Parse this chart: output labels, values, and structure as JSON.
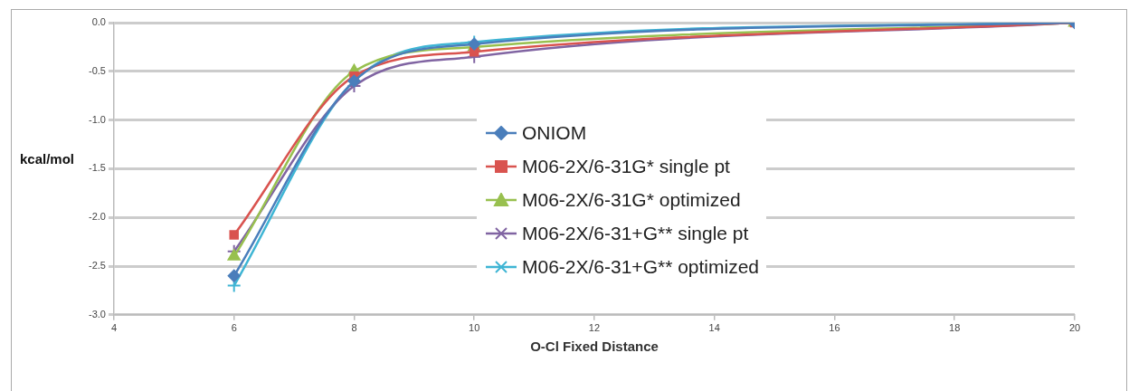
{
  "chart_data": {
    "type": "line",
    "xlabel": "O-Cl Fixed Distance",
    "ylabel": "kcal/mol",
    "x": [
      6,
      8,
      10,
      20
    ],
    "xlim": [
      4,
      20
    ],
    "xticks": [
      4,
      6,
      8,
      10,
      12,
      14,
      16,
      18,
      20
    ],
    "ylim": [
      -3,
      0
    ],
    "yticks": [
      {
        "value": -3,
        "label": "-3.0"
      },
      {
        "value": -2.5,
        "label": "-2.5"
      },
      {
        "value": -2,
        "label": "-2.0"
      },
      {
        "value": -1.5,
        "label": "-1.5"
      },
      {
        "value": -1,
        "label": "-1.0"
      },
      {
        "value": -0.5,
        "label": "-0.5"
      },
      {
        "value": 0,
        "label": "0.0"
      }
    ],
    "grid": "y",
    "legend": "center",
    "series": [
      {
        "name": "ONIOM",
        "color": "#4a7ebb",
        "marker": "diamond",
        "values": [
          -2.6,
          -0.6,
          -0.22,
          0
        ]
      },
      {
        "name": "M06-2X/6-31G* single pt",
        "color": "#d9534f",
        "marker": "square",
        "values": [
          -2.18,
          -0.55,
          -0.3,
          0
        ]
      },
      {
        "name": "M06-2X/6-31G* optimized",
        "color": "#98c04f",
        "marker": "triangle",
        "values": [
          -2.4,
          -0.5,
          -0.25,
          0
        ]
      },
      {
        "name": "M06-2X/6-31+G** single pt",
        "color": "#8064a2",
        "marker": "cross",
        "values": [
          -2.35,
          -0.65,
          -0.35,
          0
        ]
      },
      {
        "name": "M06-2X/6-31+G** optimized",
        "color": "#3fb5d4",
        "marker": "cross",
        "values": [
          -2.7,
          -0.6,
          -0.2,
          0
        ]
      }
    ]
  }
}
